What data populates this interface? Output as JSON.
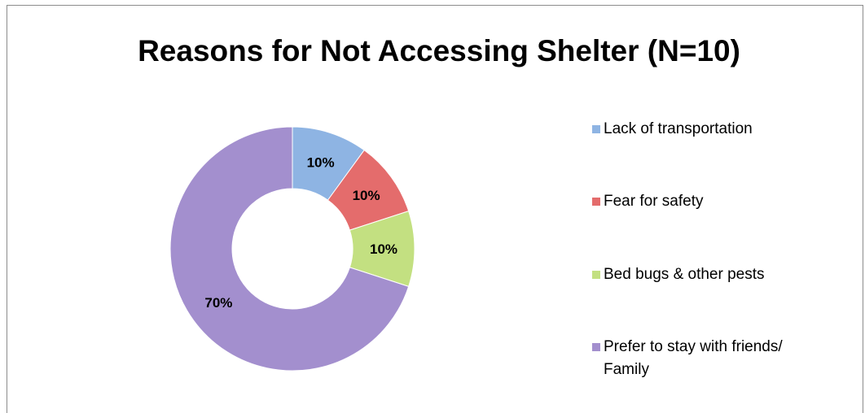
{
  "chart_data": {
    "type": "pie",
    "subtype": "donut",
    "title": "Reasons for Not Accessing Shelter (N=10)",
    "categories": [
      "Lack of transportation",
      "Fear for safety",
      "Bed bugs & other pests",
      "Prefer to stay with friends/ Family"
    ],
    "values": [
      10,
      10,
      10,
      70
    ],
    "labels": [
      "10%",
      "10%",
      "10%",
      "70%"
    ],
    "colors": [
      "#8eb4e3",
      "#e46c6c",
      "#c3e081",
      "#a38fce"
    ],
    "legend_position": "right"
  }
}
